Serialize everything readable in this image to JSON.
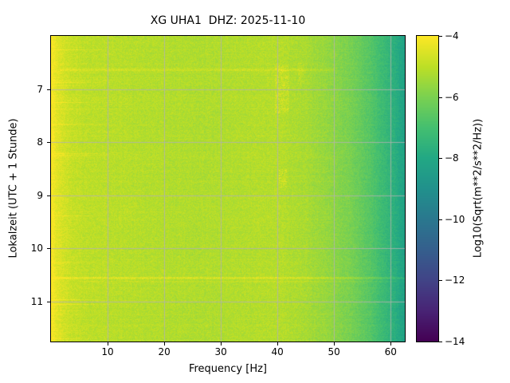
{
  "chart_data": {
    "type": "heatmap",
    "title": "XG UHA1  DHZ: 2025-11-10",
    "xlabel": "Frequency [Hz]",
    "ylabel": "Lokalzeit (UTC + 1 Stunde)",
    "xlim": [
      0,
      62.5
    ],
    "ylim": [
      6.0,
      11.75
    ],
    "x_ticks": [
      10,
      20,
      30,
      40,
      50,
      60
    ],
    "x_tick_labels": [
      "10",
      "20",
      "30",
      "40",
      "50",
      "60"
    ],
    "y_ticks": [
      7,
      8,
      9,
      10,
      11
    ],
    "y_tick_labels": [
      "7",
      "8",
      "9",
      "10",
      "11"
    ],
    "grid": true,
    "grid_color": "#b2b2b2",
    "colormap": "viridis",
    "colormap_stops": [
      {
        "t": 0.0,
        "color": "#440154"
      },
      {
        "t": 0.1,
        "color": "#482475"
      },
      {
        "t": 0.2,
        "color": "#414487"
      },
      {
        "t": 0.3,
        "color": "#355f8d"
      },
      {
        "t": 0.4,
        "color": "#2a788e"
      },
      {
        "t": 0.5,
        "color": "#21918c"
      },
      {
        "t": 0.6,
        "color": "#22a884"
      },
      {
        "t": 0.7,
        "color": "#44bf70"
      },
      {
        "t": 0.8,
        "color": "#7ad151"
      },
      {
        "t": 0.9,
        "color": "#bddf26"
      },
      {
        "t": 1.0,
        "color": "#fde725"
      }
    ],
    "colorbar": {
      "label": "Log10(Sqrt(m**2/s**2/Hz))",
      "vmin": -14,
      "vmax": -4,
      "ticks": [
        -4,
        -6,
        -8,
        -10,
        -12,
        -14
      ],
      "tick_labels": [
        "−4",
        "−6",
        "−8",
        "−10",
        "−12",
        "−14"
      ]
    },
    "spectral_profile": [
      {
        "freq": 0.0,
        "value": -4.0
      },
      {
        "freq": 0.5,
        "value": -4.2
      },
      {
        "freq": 1.0,
        "value": -4.45
      },
      {
        "freq": 3.0,
        "value": -4.8
      },
      {
        "freq": 6.0,
        "value": -5.0
      },
      {
        "freq": 10.0,
        "value": -5.05
      },
      {
        "freq": 20.0,
        "value": -5.15
      },
      {
        "freq": 30.0,
        "value": -5.2
      },
      {
        "freq": 40.0,
        "value": -5.1
      },
      {
        "freq": 45.0,
        "value": -5.3
      },
      {
        "freq": 50.0,
        "value": -5.7
      },
      {
        "freq": 54.0,
        "value": -6.2
      },
      {
        "freq": 57.0,
        "value": -6.8
      },
      {
        "freq": 59.0,
        "value": -7.3
      },
      {
        "freq": 61.0,
        "value": -7.8
      },
      {
        "freq": 62.5,
        "value": -8.3
      }
    ],
    "noise_amplitude": 0.3,
    "event_rows": [
      {
        "time": 6.63,
        "freq": [
          1.5,
          50.0
        ],
        "boost": 0.35
      },
      {
        "time": 10.55,
        "freq": [
          0.0,
          62.5
        ],
        "boost": 0.5
      },
      {
        "time": 10.62,
        "freq": [
          5.0,
          62.5
        ],
        "boost": 0.25
      }
    ],
    "narrowband_events": [
      {
        "freq": [
          39.5,
          42.0
        ],
        "time": [
          6.55,
          7.45
        ],
        "boost": 0.45
      },
      {
        "freq": [
          40.2,
          41.6
        ],
        "time": [
          8.5,
          8.85
        ],
        "boost": 0.5
      },
      {
        "freq": [
          43.5,
          44.5
        ],
        "time": [
          6.5,
          6.9
        ],
        "boost": 0.3
      }
    ]
  }
}
